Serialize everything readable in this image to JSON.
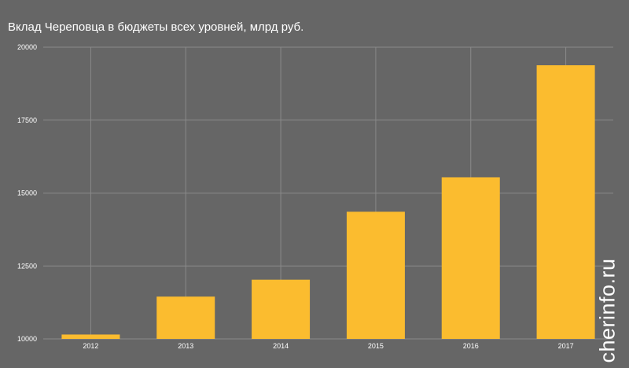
{
  "chart_data": {
    "type": "bar",
    "title": "Вклад Череповца в бюджеты всех уровней, млрд руб.",
    "xlabel": "",
    "ylabel": "",
    "categories": [
      "2012",
      "2013",
      "2014",
      "2015",
      "2016",
      "2017"
    ],
    "values": [
      10150,
      11450,
      12030,
      14360,
      15540,
      19380
    ],
    "ylim": [
      10000,
      20000
    ],
    "yticks": [
      10000,
      12500,
      15000,
      17500,
      20000
    ],
    "grid": true,
    "legend": "none",
    "colors": {
      "background": "#666666",
      "bar": "#fbbc2f",
      "grid": "#8a8a8a",
      "text": "#ffffff"
    }
  },
  "watermark": "cherinfo.ru"
}
